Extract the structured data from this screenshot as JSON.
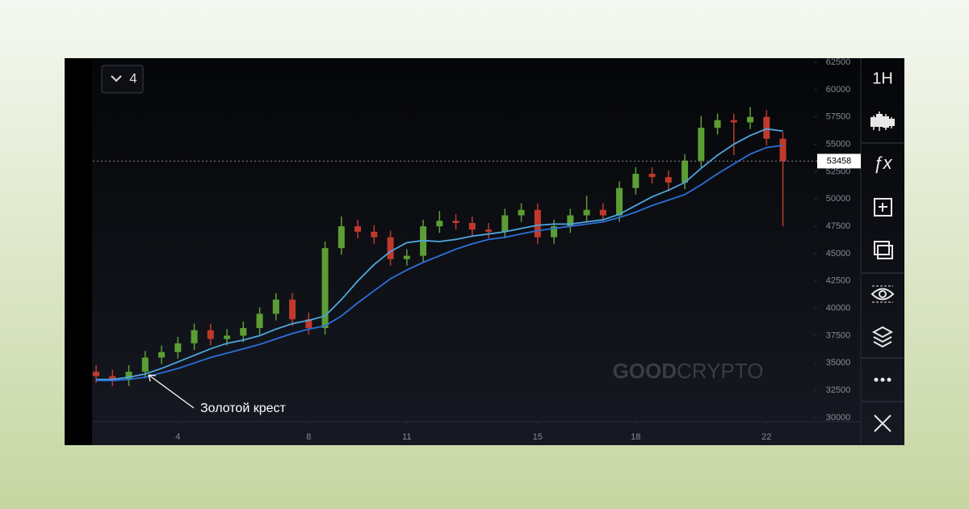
{
  "toolbar": {
    "interval": "1H",
    "functions": "ƒx"
  },
  "indicator_count": "4",
  "annotation": "Золотой крест",
  "watermark": {
    "bold": "GOOD",
    "light": "CRYPTO"
  },
  "chart_data": {
    "type": "candlestick",
    "x": [
      1.5,
      2,
      2.5,
      3,
      3.5,
      4,
      4.5,
      5,
      5.5,
      6,
      6.5,
      7,
      7.5,
      8,
      8.5,
      9,
      9.5,
      10,
      10.5,
      11,
      11.5,
      12,
      12.5,
      13,
      13.5,
      14,
      14.5,
      15,
      15.5,
      16,
      16.5,
      17,
      17.5,
      18,
      18.5,
      19,
      19.5,
      20,
      20.5,
      21,
      21.5,
      22,
      22.5
    ],
    "open": [
      34200,
      33800,
      33500,
      34200,
      35500,
      36000,
      36800,
      38000,
      37200,
      37500,
      38200,
      39500,
      40800,
      39000,
      38200,
      45500,
      47500,
      47000,
      46500,
      44500,
      44800,
      47500,
      48000,
      47800,
      47200,
      47000,
      48500,
      49000,
      46500,
      47500,
      48500,
      49000,
      48500,
      51000,
      52300,
      52000,
      51500,
      53500,
      56500,
      57200,
      57000,
      57500,
      55500
    ],
    "high": [
      34800,
      34400,
      34800,
      36100,
      36600,
      37400,
      38600,
      38600,
      38100,
      38800,
      40100,
      41400,
      41400,
      39600,
      46100,
      48400,
      48100,
      47600,
      47100,
      45400,
      48100,
      48900,
      48600,
      48400,
      47800,
      49100,
      49600,
      49600,
      48100,
      49100,
      50300,
      49600,
      51600,
      52900,
      52900,
      52600,
      54100,
      57600,
      57800,
      57800,
      58400,
      58100,
      56100
    ],
    "low": [
      33200,
      32900,
      32900,
      33600,
      34900,
      35400,
      36200,
      36600,
      36600,
      36900,
      37600,
      38900,
      38400,
      37600,
      37600,
      44900,
      46400,
      45900,
      43900,
      43900,
      44200,
      46900,
      47200,
      46600,
      46400,
      46400,
      47900,
      45900,
      45900,
      46900,
      47900,
      47900,
      47900,
      50400,
      51400,
      50700,
      50900,
      52900,
      55900,
      54000,
      56400,
      54900,
      47500
    ],
    "close": [
      33800,
      33500,
      34200,
      35500,
      36000,
      36800,
      38000,
      37200,
      37500,
      38200,
      39500,
      40800,
      39000,
      38200,
      45500,
      47500,
      47000,
      46500,
      44500,
      44800,
      47500,
      48000,
      47800,
      47200,
      47000,
      48500,
      49000,
      46500,
      47500,
      48500,
      49000,
      48500,
      51000,
      52300,
      52000,
      51500,
      53500,
      56500,
      57200,
      57000,
      57500,
      55500,
      53458
    ],
    "up_color": "#5c9e34",
    "down_color": "#c0392b",
    "series": [
      {
        "color": "#4fa6e0",
        "values": [
          33500,
          33500,
          33700,
          34000,
          34500,
          35100,
          35700,
          36300,
          36800,
          37100,
          37500,
          38100,
          38600,
          38900,
          39300,
          40800,
          42500,
          44000,
          45200,
          46000,
          46200,
          46100,
          46300,
          46600,
          46800,
          47000,
          47300,
          47600,
          47700,
          47700,
          47900,
          48100,
          48600,
          49400,
          50200,
          50800,
          51500,
          52800,
          54000,
          55000,
          55800,
          56400,
          56200
        ]
      },
      {
        "color": "#2d6fd6",
        "values": [
          33400,
          33400,
          33500,
          33700,
          34100,
          34500,
          35000,
          35500,
          35900,
          36300,
          36700,
          37200,
          37700,
          38100,
          38400,
          39300,
          40500,
          41600,
          42700,
          43500,
          44200,
          44800,
          45400,
          45900,
          46300,
          46500,
          46800,
          47100,
          47300,
          47500,
          47700,
          47900,
          48300,
          48800,
          49400,
          49900,
          50400,
          51300,
          52300,
          53200,
          54100,
          54700,
          54900
        ]
      }
    ],
    "xlim": [
      1.4,
      23.4
    ],
    "xticks": [
      4,
      8,
      11,
      15,
      18,
      22
    ],
    "ylim": [
      30000,
      62500
    ],
    "yticks": [
      30000,
      32500,
      35000,
      37500,
      40000,
      42500,
      45000,
      47500,
      50000,
      52500,
      55000,
      57500,
      60000,
      62500
    ]
  }
}
